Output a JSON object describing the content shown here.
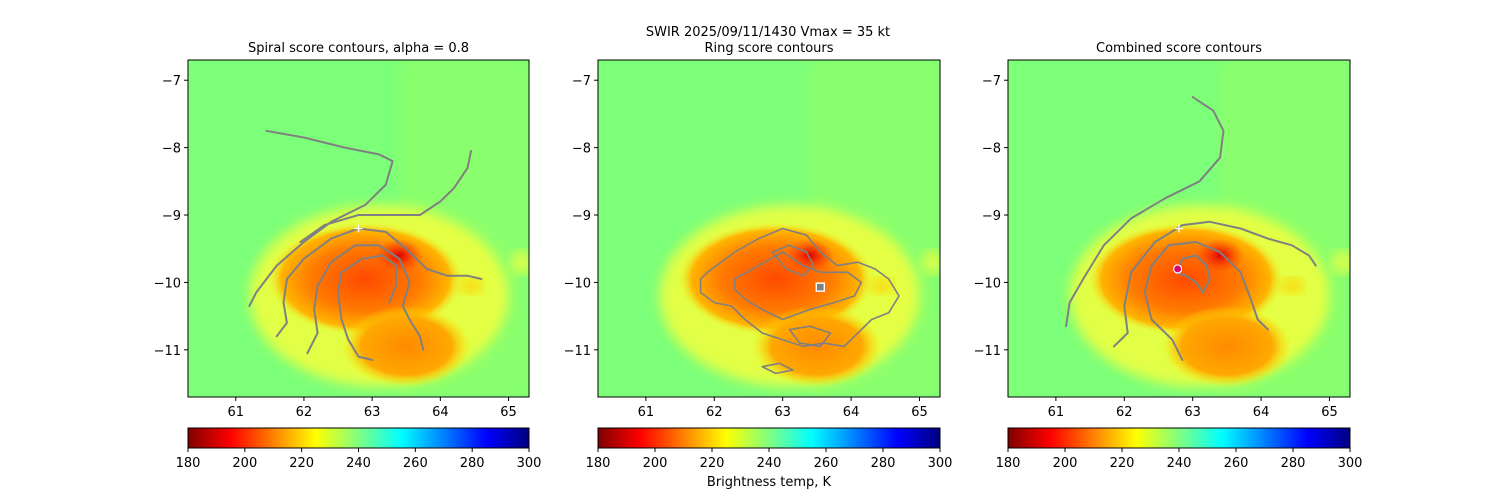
{
  "suptitle": {
    "line1": "SWIR  2025/09/11/1430    Vmax = 35 kt"
  },
  "colorbar_label": "Brightness temp, K",
  "colormap": {
    "name": "jet_r",
    "stops": [
      "#800000",
      "#ff0000",
      "#ff8000",
      "#ffff00",
      "#80ff80",
      "#00ffff",
      "#0080ff",
      "#0000ff",
      "#000080"
    ],
    "background_color": "#7cff79",
    "warm_core_color": "#ff6a00",
    "contour_color": "#808080"
  },
  "chart_data": [
    {
      "type": "heatmap",
      "title": "Spiral score contours, alpha =  0.8",
      "xlim": [
        60.3,
        65.3
      ],
      "ylim": [
        -11.7,
        -6.7
      ],
      "xticks": [
        "61",
        "62",
        "63",
        "64",
        "65"
      ],
      "yticks": [
        "−7",
        "−8",
        "−9",
        "−10",
        "−11"
      ],
      "colorbar": {
        "range": [
          180,
          300
        ],
        "ticks": [
          "180",
          "200",
          "220",
          "240",
          "260",
          "280",
          "300"
        ]
      },
      "center_marker": {
        "symbol": "+",
        "x": 62.8,
        "y": -9.2,
        "color": "#ffffff"
      },
      "contours": [
        [
          [
            61.45,
            -7.75
          ],
          [
            62.0,
            -7.85
          ],
          [
            62.6,
            -8.0
          ],
          [
            63.1,
            -8.1
          ],
          [
            63.3,
            -8.2
          ],
          [
            63.2,
            -8.55
          ],
          [
            62.9,
            -8.85
          ],
          [
            62.4,
            -9.1
          ],
          [
            62.0,
            -9.4
          ],
          [
            61.6,
            -9.75
          ],
          [
            61.3,
            -10.15
          ],
          [
            61.2,
            -10.35
          ]
        ],
        [
          [
            61.95,
            -9.4
          ],
          [
            62.3,
            -9.15
          ],
          [
            62.8,
            -9.0
          ],
          [
            63.3,
            -9.0
          ],
          [
            63.5,
            -9.0
          ],
          [
            63.7,
            -9.0
          ],
          [
            64.0,
            -8.8
          ],
          [
            64.2,
            -8.6
          ],
          [
            64.4,
            -8.3
          ],
          [
            64.45,
            -8.05
          ]
        ],
        [
          [
            61.6,
            -10.8
          ],
          [
            61.75,
            -10.6
          ],
          [
            61.7,
            -10.3
          ],
          [
            61.75,
            -9.95
          ],
          [
            62.0,
            -9.65
          ],
          [
            62.4,
            -9.35
          ],
          [
            62.8,
            -9.2
          ],
          [
            63.2,
            -9.25
          ],
          [
            63.5,
            -9.5
          ],
          [
            63.8,
            -9.8
          ],
          [
            64.1,
            -9.9
          ],
          [
            64.4,
            -9.9
          ],
          [
            64.6,
            -9.95
          ]
        ],
        [
          [
            62.05,
            -11.05
          ],
          [
            62.2,
            -10.75
          ],
          [
            62.15,
            -10.4
          ],
          [
            62.2,
            -10.05
          ],
          [
            62.4,
            -9.7
          ],
          [
            62.75,
            -9.45
          ],
          [
            63.1,
            -9.45
          ],
          [
            63.4,
            -9.65
          ],
          [
            63.55,
            -10.0
          ],
          [
            63.45,
            -10.35
          ],
          [
            63.55,
            -10.55
          ],
          [
            63.7,
            -10.8
          ],
          [
            63.75,
            -11.0
          ]
        ],
        [
          [
            63.0,
            -11.15
          ],
          [
            62.8,
            -11.1
          ],
          [
            62.65,
            -10.85
          ],
          [
            62.55,
            -10.55
          ],
          [
            62.5,
            -10.15
          ],
          [
            62.55,
            -9.85
          ],
          [
            62.85,
            -9.65
          ],
          [
            63.15,
            -9.6
          ],
          [
            63.35,
            -9.75
          ],
          [
            63.35,
            -10.05
          ],
          [
            63.25,
            -10.3
          ]
        ]
      ]
    },
    {
      "type": "heatmap",
      "title": "Ring score contours",
      "xlim": [
        60.3,
        65.3
      ],
      "ylim": [
        -11.7,
        -6.7
      ],
      "xticks": [
        "61",
        "62",
        "63",
        "64",
        "65"
      ],
      "yticks": [
        "−7",
        "−8",
        "−9",
        "−10",
        "−11"
      ],
      "colorbar": {
        "range": [
          180,
          300
        ],
        "ticks": [
          "180",
          "200",
          "220",
          "240",
          "260",
          "280",
          "300"
        ]
      },
      "center_marker": {
        "symbol": "square",
        "x": 63.55,
        "y": -10.07,
        "color": "#ffffff"
      },
      "contours": [
        [
          [
            61.9,
            -9.85
          ],
          [
            62.3,
            -9.55
          ],
          [
            62.65,
            -9.35
          ],
          [
            63.0,
            -9.2
          ],
          [
            63.35,
            -9.3
          ],
          [
            63.55,
            -9.55
          ],
          [
            63.8,
            -9.75
          ],
          [
            64.1,
            -9.7
          ],
          [
            64.35,
            -9.8
          ],
          [
            64.55,
            -9.95
          ],
          [
            64.7,
            -10.2
          ],
          [
            64.55,
            -10.45
          ],
          [
            64.3,
            -10.55
          ],
          [
            64.1,
            -10.75
          ],
          [
            63.9,
            -10.95
          ],
          [
            63.6,
            -10.9
          ],
          [
            63.3,
            -10.95
          ],
          [
            63.0,
            -10.85
          ],
          [
            62.7,
            -10.75
          ],
          [
            62.45,
            -10.55
          ],
          [
            62.25,
            -10.35
          ],
          [
            62.0,
            -10.3
          ],
          [
            61.8,
            -10.15
          ],
          [
            61.8,
            -9.95
          ],
          [
            61.9,
            -9.85
          ]
        ],
        [
          [
            62.3,
            -9.95
          ],
          [
            62.65,
            -9.75
          ],
          [
            63.0,
            -9.55
          ],
          [
            63.3,
            -9.75
          ],
          [
            63.55,
            -9.85
          ],
          [
            63.95,
            -9.85
          ],
          [
            64.15,
            -10.0
          ],
          [
            64.05,
            -10.2
          ],
          [
            63.75,
            -10.3
          ],
          [
            63.4,
            -10.4
          ],
          [
            63.0,
            -10.55
          ],
          [
            62.7,
            -10.4
          ],
          [
            62.45,
            -10.25
          ],
          [
            62.3,
            -10.1
          ],
          [
            62.3,
            -9.95
          ]
        ],
        [
          [
            62.85,
            -9.55
          ],
          [
            63.1,
            -9.45
          ],
          [
            63.35,
            -9.55
          ],
          [
            63.45,
            -9.75
          ],
          [
            63.3,
            -9.9
          ],
          [
            63.05,
            -9.8
          ],
          [
            62.85,
            -9.55
          ]
        ],
        [
          [
            63.1,
            -10.7
          ],
          [
            63.4,
            -10.65
          ],
          [
            63.7,
            -10.75
          ],
          [
            63.55,
            -10.95
          ],
          [
            63.25,
            -10.9
          ],
          [
            63.1,
            -10.7
          ]
        ],
        [
          [
            62.7,
            -11.25
          ],
          [
            62.95,
            -11.2
          ],
          [
            63.15,
            -11.3
          ],
          [
            62.9,
            -11.35
          ],
          [
            62.7,
            -11.25
          ]
        ]
      ]
    },
    {
      "type": "heatmap",
      "title": "Combined score contours",
      "xlim": [
        60.3,
        65.3
      ],
      "ylim": [
        -11.7,
        -6.7
      ],
      "xticks": [
        "61",
        "62",
        "63",
        "64",
        "65"
      ],
      "yticks": [
        "−7",
        "−8",
        "−9",
        "−10",
        "−11"
      ],
      "colorbar": {
        "range": [
          180,
          300
        ],
        "ticks": [
          "180",
          "200",
          "220",
          "240",
          "260",
          "280",
          "300"
        ]
      },
      "center_marker": {
        "symbol": "+",
        "x": 62.8,
        "y": -9.2,
        "color": "#ffffff"
      },
      "second_marker": {
        "symbol": "circle",
        "x": 62.78,
        "y": -9.8,
        "color": "#e0006e"
      },
      "contours": [
        [
          [
            63.0,
            -7.25
          ],
          [
            63.3,
            -7.45
          ],
          [
            63.45,
            -7.75
          ],
          [
            63.4,
            -8.15
          ],
          [
            63.1,
            -8.5
          ],
          [
            62.6,
            -8.75
          ],
          [
            62.1,
            -9.05
          ],
          [
            61.7,
            -9.45
          ],
          [
            61.4,
            -9.95
          ],
          [
            61.2,
            -10.3
          ],
          [
            61.15,
            -10.65
          ]
        ],
        [
          [
            61.85,
            -10.95
          ],
          [
            62.05,
            -10.75
          ],
          [
            62.0,
            -10.35
          ],
          [
            62.1,
            -9.85
          ],
          [
            62.45,
            -9.4
          ],
          [
            62.85,
            -9.15
          ],
          [
            63.25,
            -9.1
          ],
          [
            63.7,
            -9.2
          ],
          [
            64.1,
            -9.35
          ],
          [
            64.45,
            -9.45
          ],
          [
            64.7,
            -9.6
          ],
          [
            64.8,
            -9.75
          ]
        ],
        [
          [
            62.85,
            -11.15
          ],
          [
            62.7,
            -10.85
          ],
          [
            62.4,
            -10.55
          ],
          [
            62.3,
            -10.15
          ],
          [
            62.4,
            -9.75
          ],
          [
            62.65,
            -9.45
          ],
          [
            63.05,
            -9.4
          ],
          [
            63.4,
            -9.55
          ],
          [
            63.7,
            -9.85
          ],
          [
            63.85,
            -10.25
          ],
          [
            63.95,
            -10.55
          ],
          [
            64.1,
            -10.7
          ]
        ],
        [
          [
            62.75,
            -9.85
          ],
          [
            62.85,
            -9.65
          ],
          [
            63.05,
            -9.6
          ],
          [
            63.2,
            -9.75
          ],
          [
            63.25,
            -9.95
          ],
          [
            63.15,
            -10.15
          ],
          [
            63.05,
            -10.0
          ],
          [
            62.9,
            -9.9
          ],
          [
            62.75,
            -9.85
          ]
        ]
      ]
    }
  ]
}
